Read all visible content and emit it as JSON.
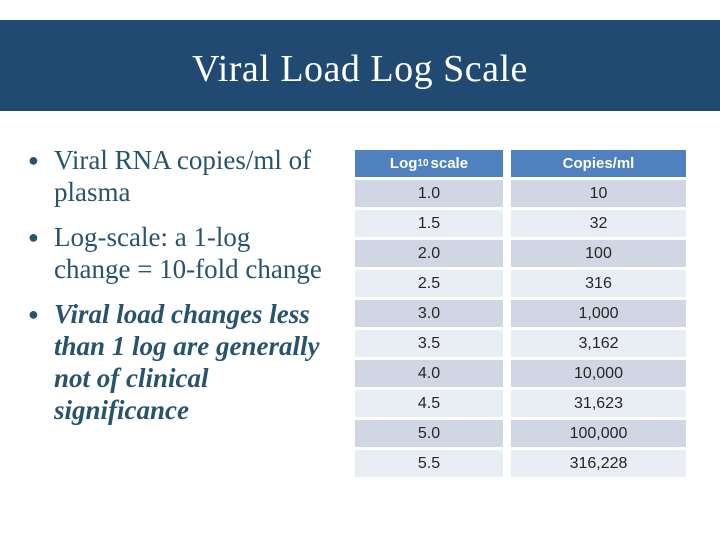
{
  "slide": {
    "title": "Viral Load Log Scale"
  },
  "bullets": [
    {
      "text": "Viral RNA copies/ml of plasma",
      "style": "normal"
    },
    {
      "text": "Log-scale: a 1-log change = 10-fold change",
      "style": "normal"
    },
    {
      "text": "Viral load changes less than 1 log are generally not of clinical significance",
      "style": "bold-italic"
    }
  ],
  "table": {
    "header_log": {
      "pre": "Log",
      "sub": "10",
      "post": " scale"
    },
    "header_copies": "Copies/ml",
    "rows": [
      [
        "1.0",
        "10"
      ],
      [
        "1.5",
        "32"
      ],
      [
        "2.0",
        "100"
      ],
      [
        "2.5",
        "316"
      ],
      [
        "3.0",
        "1,000"
      ],
      [
        "3.5",
        "3,162"
      ],
      [
        "4.0",
        "10,000"
      ],
      [
        "4.5",
        "31,623"
      ],
      [
        "5.0",
        "100,000"
      ],
      [
        "5.5",
        "316,228"
      ]
    ]
  },
  "colors": {
    "title_band": "#214a73",
    "bullet_text": "#28536e",
    "table_header": "#4e81bd",
    "row_dark": "#d0d6e4",
    "row_light": "#e9edf4"
  }
}
